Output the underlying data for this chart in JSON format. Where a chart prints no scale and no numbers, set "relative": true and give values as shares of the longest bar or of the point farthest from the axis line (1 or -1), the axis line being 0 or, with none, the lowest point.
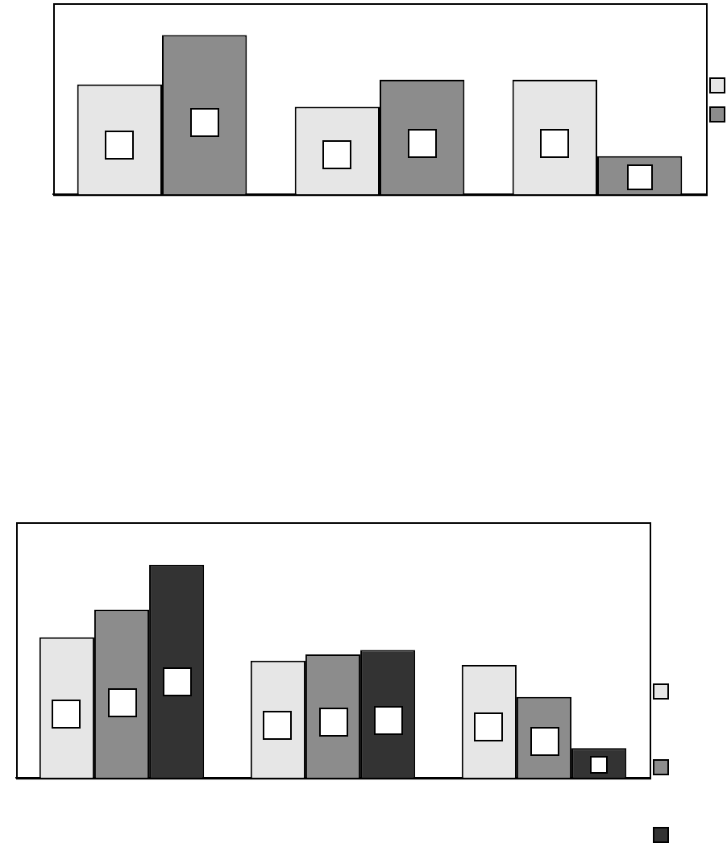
{
  "chart_data": [
    {
      "type": "bar",
      "categories": [
        null,
        null,
        null
      ],
      "relative": true,
      "legend": false,
      "series": [
        {
          "color": "#e6e6e6",
          "values": [
            0.69,
            0.55,
            0.72
          ]
        },
        {
          "color": "#8c8c8c",
          "values": [
            1,
            0.72,
            0.24
          ]
        }
      ]
    },
    {
      "type": "bar",
      "categories": [
        null,
        null,
        null
      ],
      "relative": true,
      "legend": false,
      "series": [
        {
          "color": "#e6e6e6",
          "values": [
            0.66,
            0.55,
            0.53
          ]
        },
        {
          "color": "#8c8c8c",
          "values": [
            0.79,
            0.58,
            0.38
          ]
        },
        {
          "color": "#333333",
          "values": [
            1,
            0.6,
            0.14
          ]
        }
      ]
    }
  ]
}
